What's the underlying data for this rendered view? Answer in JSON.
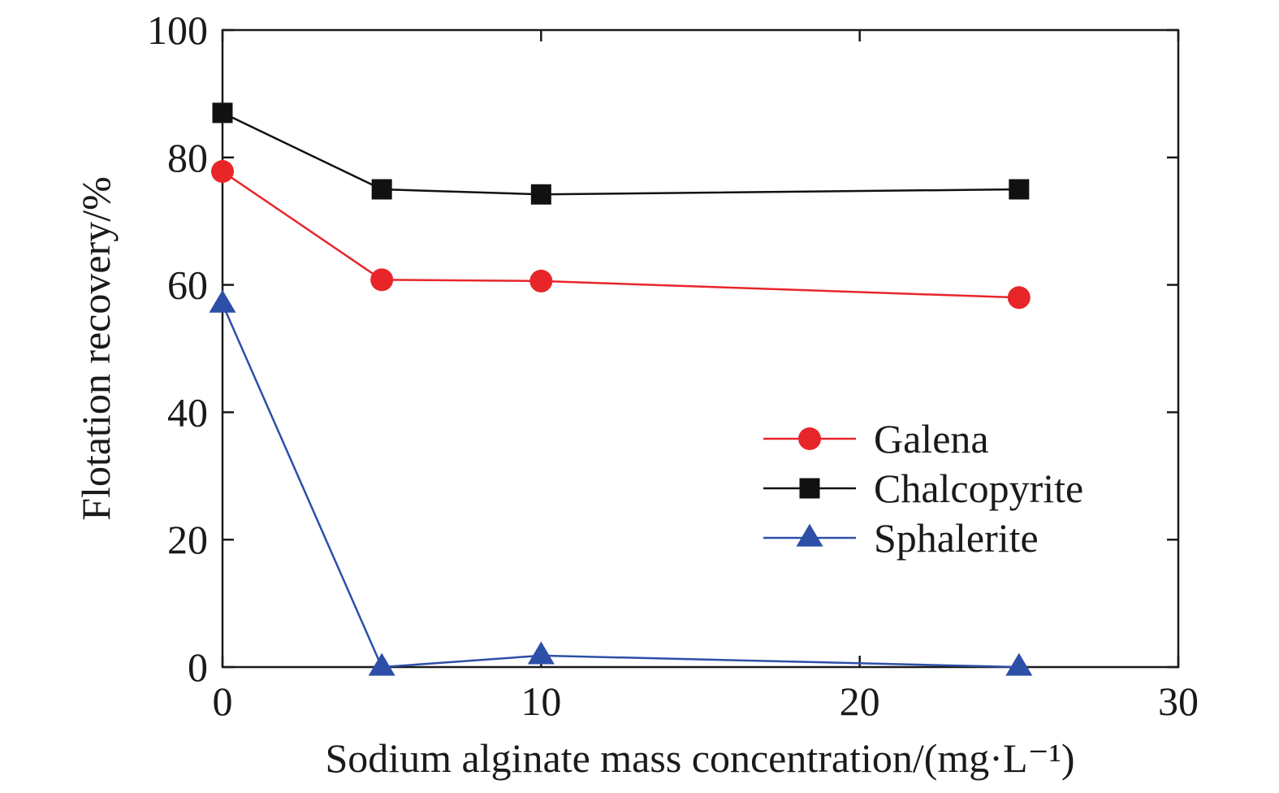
{
  "chart_data": {
    "type": "line",
    "xlabel": "Sodium alginate mass concentration/(mg·L⁻¹)",
    "ylabel": "Flotation recovery/%",
    "xlim": [
      0,
      30
    ],
    "ylim": [
      0,
      100
    ],
    "x_ticks": [
      0,
      10,
      20,
      30
    ],
    "y_ticks": [
      0,
      20,
      40,
      60,
      80,
      100
    ],
    "x_tick_labels": [
      "0",
      "10",
      "20",
      "30"
    ],
    "y_tick_labels": [
      "0",
      "20",
      "40",
      "60",
      "80",
      "100"
    ],
    "grid": false,
    "legend_position": "right-middle",
    "series": [
      {
        "name": "Galena",
        "color": "#e8262a",
        "marker": "circle",
        "x": [
          0,
          5,
          10,
          25
        ],
        "y": [
          77.8,
          60.8,
          60.6,
          58.0
        ]
      },
      {
        "name": "Chalcopyrite",
        "color": "#111111",
        "marker": "square",
        "x": [
          0,
          5,
          10,
          25
        ],
        "y": [
          87.0,
          75.0,
          74.2,
          75.0
        ]
      },
      {
        "name": "Sphalerite",
        "color": "#2d4fa8",
        "marker": "triangle",
        "x": [
          0,
          5,
          10,
          25
        ],
        "y": [
          57.0,
          0.0,
          1.8,
          0.0
        ]
      }
    ]
  }
}
